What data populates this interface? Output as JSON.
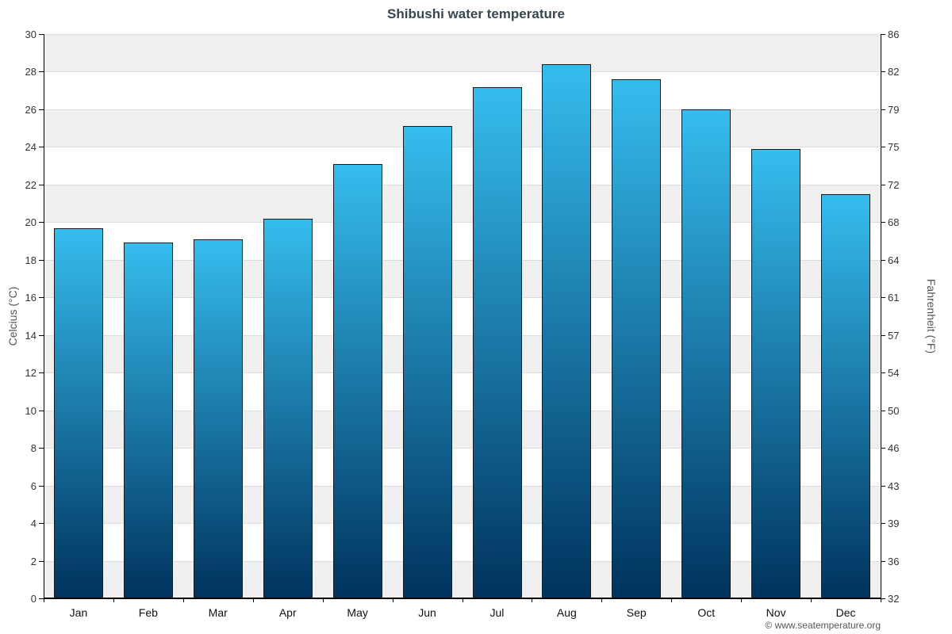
{
  "chart_data": {
    "type": "bar",
    "title": "Shibushi water temperature",
    "ylabel_left": "Celcius (°C)",
    "ylabel_right": "Fahrenheit (°F)",
    "categories": [
      "Jan",
      "Feb",
      "Mar",
      "Apr",
      "May",
      "Jun",
      "Jul",
      "Aug",
      "Sep",
      "Oct",
      "Nov",
      "Dec"
    ],
    "values": [
      19.7,
      18.9,
      19.1,
      20.2,
      23.1,
      25.1,
      27.2,
      28.4,
      27.6,
      26.0,
      23.9,
      21.5
    ],
    "ylim": [
      0,
      30
    ],
    "y_ticks_celsius": [
      0,
      2,
      4,
      6,
      8,
      10,
      12,
      14,
      16,
      18,
      20,
      22,
      24,
      26,
      28,
      30
    ],
    "y_ticks_fahrenheit": [
      32,
      36,
      39,
      43,
      46,
      50,
      54,
      57,
      61,
      64,
      68,
      72,
      75,
      79,
      82,
      86
    ],
    "grid": true,
    "legend": "none",
    "band_colors": [
      "#efefef",
      "#ffffff"
    ],
    "bar_gradient_top": "#35bdee",
    "bar_gradient_bottom": "#00335e",
    "bar_border": "#1a1a1a",
    "source": "© www.seatemperature.org"
  }
}
